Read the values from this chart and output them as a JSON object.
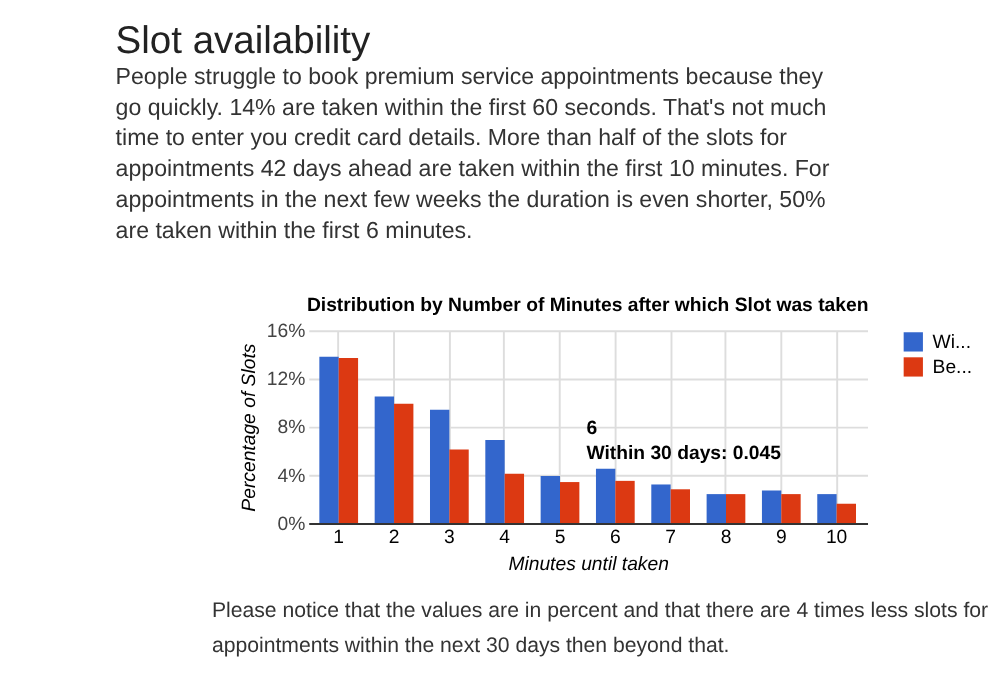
{
  "chart_data": {
    "type": "bar",
    "title": "Slot availability",
    "subtitle": "People struggle to book premium service appointments because they\ngo quickly. 14% are taken within the first 60 seconds. That's not much\ntime to enter you credit card details. More than half of the slots for\nappointments 42 days ahead are taken within the first 10 minutes. For\nappointments in the next few weeks the duration is even shorter, 50%\nare taken within the first 6 minutes.",
    "xlabel": "Minutes until taken",
    "ylabel": "Percentage of Slots",
    "categories": [
      "1",
      "2",
      "3",
      "4",
      "5",
      "6",
      "7",
      "8",
      "9",
      "10"
    ],
    "series": [
      {
        "name": "Wi...",
        "color": "#3366cc",
        "values": [
          13.8,
          10.5,
          9.4,
          6.9,
          3.9,
          4.5,
          3.2,
          2.4,
          2.7,
          2.4
        ]
      },
      {
        "name": "Be...",
        "color": "#dc3912",
        "values": [
          13.7,
          9.9,
          6.1,
          4.1,
          3.4,
          3.5,
          2.8,
          2.4,
          2.4,
          1.6
        ]
      }
    ],
    "ylim": [
      0,
      16
    ],
    "yticks": [
      {
        "value": 0,
        "label": "0%"
      },
      {
        "value": 4,
        "label": "4%"
      },
      {
        "value": 8,
        "label": "8%"
      },
      {
        "value": 12,
        "label": "12%"
      },
      {
        "value": 16,
        "label": "16%"
      }
    ],
    "grid": true,
    "legend": "top right",
    "annotations": [
      "Distribution by Number of Minutes after which Slot was taken",
      {
        "text": "6\nWithin 30 days: 0.045",
        "x": "6",
        "y": 4.5
      },
      "Please notice that the values are in percent and that there are 4 times less slots for\nappointments within the next 30 days then beyond that."
    ]
  }
}
